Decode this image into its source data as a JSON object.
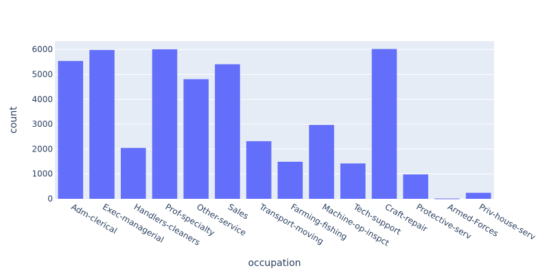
{
  "chart_data": {
    "type": "bar",
    "title": "",
    "xlabel": "occupation",
    "ylabel": "count",
    "categories": [
      "Adm-clerical",
      "Exec-managerial",
      "Handlers-cleaners",
      "Prof-specialty",
      "Other-service",
      "Sales",
      "Transport-moving",
      "Farming-fishing",
      "Machine-op-inspct",
      "Tech-support",
      "Craft-repair",
      "Protective-serv",
      "Armed-Forces",
      "Priv-house-serv"
    ],
    "values": [
      5540,
      5984,
      2046,
      6008,
      4808,
      5408,
      2316,
      1490,
      2970,
      1422,
      6020,
      983,
      14,
      242
    ],
    "ylim": [
      0,
      6337
    ],
    "yticks": [
      0,
      1000,
      2000,
      3000,
      4000,
      5000,
      6000
    ],
    "ytick_labels": [
      "0",
      "1000",
      "2000",
      "3000",
      "4000",
      "5000",
      "6000"
    ],
    "grid": true,
    "legend": "none"
  },
  "colors": {
    "bar": "#636efa",
    "plot_background": "#e5ecf6",
    "gridline": "#ffffff",
    "text": "#2a3f5f"
  }
}
